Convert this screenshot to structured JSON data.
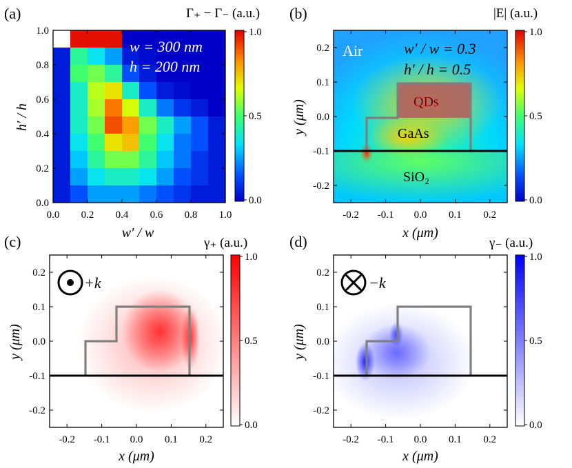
{
  "chart_data": [
    {
      "type": "heatmap",
      "panel": "(a)",
      "colorbar_title": "Γ₊ − Γ₋ (a.u.)",
      "colorbar_ticks": [
        "1.0",
        "0.5",
        "0.0"
      ],
      "xlabel": "w′ / w",
      "ylabel": "h′ / h",
      "xticks": [
        "0.0",
        "0.2",
        "0.4",
        "0.6",
        "0.8",
        "1.0"
      ],
      "yticks": [
        "1.0",
        "0.8",
        "0.6",
        "0.4",
        "0.2",
        "0.0"
      ],
      "xlim": [
        0,
        1
      ],
      "ylim": [
        0,
        1
      ],
      "annotations": [
        "w = 300 nm",
        "h = 200 nm"
      ],
      "grid_rows_top_to_bottom": [
        [
          null,
          0.98,
          0.98,
          0.98,
          0.0,
          0.0,
          0.0,
          0.0,
          0.0,
          0.0
        ],
        [
          0.05,
          0.45,
          0.35,
          0.25,
          0.05,
          0.02,
          0.0,
          0.0,
          0.0,
          0.0
        ],
        [
          0.05,
          0.5,
          0.55,
          0.45,
          0.15,
          0.05,
          0.0,
          0.0,
          0.0,
          0.0
        ],
        [
          0.05,
          0.4,
          0.62,
          0.7,
          0.4,
          0.15,
          0.05,
          0.02,
          0.0,
          0.0
        ],
        [
          0.05,
          0.4,
          0.6,
          0.85,
          0.65,
          0.4,
          0.2,
          0.1,
          0.05,
          0.0
        ],
        [
          0.05,
          0.4,
          0.55,
          0.9,
          0.8,
          0.55,
          0.4,
          0.25,
          0.15,
          0.05
        ],
        [
          0.05,
          0.35,
          0.5,
          0.7,
          0.75,
          0.5,
          0.35,
          0.2,
          0.15,
          0.05
        ],
        [
          0.05,
          0.3,
          0.45,
          0.55,
          0.55,
          0.45,
          0.3,
          0.2,
          0.1,
          0.05
        ],
        [
          0.05,
          0.25,
          0.35,
          0.4,
          0.4,
          0.35,
          0.25,
          0.15,
          0.1,
          0.05
        ],
        [
          0.05,
          0.15,
          0.25,
          0.25,
          0.25,
          0.2,
          0.15,
          0.1,
          0.05,
          0.05
        ]
      ]
    },
    {
      "type": "heatmap",
      "panel": "(b)",
      "colorbar_title": "|E| (a.u.)",
      "colorbar_ticks": [
        "1.0",
        "0.5",
        "0.0"
      ],
      "xlabel": "x (μm)",
      "ylabel": "y (μm)",
      "xticks": [
        "-0.2",
        "-0.1",
        "0.0",
        "0.1",
        "0.2"
      ],
      "yticks": [
        "0.2",
        "0.1",
        "0.0",
        "-0.1",
        "-0.2"
      ],
      "xlim": [
        -0.25,
        0.25
      ],
      "ylim": [
        -0.25,
        0.25
      ],
      "annotations": [
        "Air",
        "w′ / w = 0.3",
        "h′ / h = 0.5",
        "QDs",
        "GaAs",
        "SiO₂"
      ]
    },
    {
      "type": "heatmap",
      "panel": "(c)",
      "colorbar_title": "γ₊ (a.u.)",
      "colorbar_ticks": [
        "1.0",
        "0.5",
        "0.0"
      ],
      "xlabel": "x (μm)",
      "ylabel": "y (μm)",
      "xticks": [
        "-0.2",
        "-0.1",
        "0.0",
        "0.1",
        "0.2"
      ],
      "yticks": [
        "0.2",
        "0.1",
        "0.0",
        "-0.1",
        "-0.2"
      ],
      "xlim": [
        -0.25,
        0.25
      ],
      "ylim": [
        -0.25,
        0.25
      ],
      "annotations": [
        "+k"
      ]
    },
    {
      "type": "heatmap",
      "panel": "(d)",
      "colorbar_title": "γ₋ (a.u.)",
      "colorbar_ticks": [
        "1.0",
        "0.5",
        "0.0"
      ],
      "xlabel": "x (μm)",
      "ylabel": "y (μm)",
      "xticks": [
        "-0.2",
        "-0.1",
        "0.0",
        "0.1",
        "0.2"
      ],
      "yticks": [
        "0.2",
        "0.1",
        "0.0",
        "-0.1",
        "-0.2"
      ],
      "xlim": [
        -0.25,
        0.25
      ],
      "ylim": [
        -0.25,
        0.25
      ],
      "annotations": [
        "−k"
      ]
    }
  ]
}
